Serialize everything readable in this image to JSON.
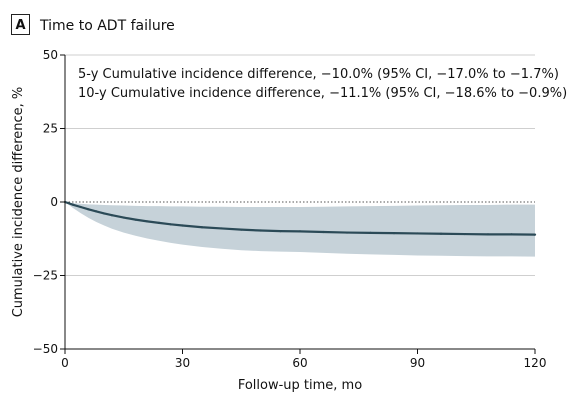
{
  "panel": {
    "letter": "A",
    "title": "Time to ADT failure"
  },
  "annotations": [
    "5-y Cumulative incidence difference, −10.0% (95% CI, −17.0% to −1.7%)",
    "10-y Cumulative incidence difference, −11.1% (95% CI, −18.6% to −0.9%)"
  ],
  "chart_data": {
    "type": "line",
    "title": "Time to ADT failure",
    "xlabel": "Follow-up time, mo",
    "ylabel": "Cumulative incidence difference, %",
    "xlim": [
      0,
      120
    ],
    "ylim": [
      -50,
      50
    ],
    "xticks": [
      0,
      30,
      60,
      90,
      120
    ],
    "yticks": [
      50,
      25,
      0,
      -25,
      -50
    ],
    "xtick_labels": [
      "0",
      "30",
      "60",
      "90",
      "120"
    ],
    "ytick_labels": [
      "50",
      "25",
      "0",
      "−25",
      "−50"
    ],
    "grid": {
      "horizontal": true,
      "vertical": false
    },
    "reference_line_y": 0,
    "colors": {
      "line": "#2b4a57",
      "band": "#c6d2d9"
    },
    "series": [
      {
        "x": [
          0,
          2,
          4,
          6,
          8,
          10,
          12,
          15,
          18,
          21,
          24,
          27,
          30,
          35,
          40,
          45,
          50,
          55,
          60,
          66,
          72,
          78,
          84,
          90,
          96,
          102,
          108,
          114,
          120
        ],
        "y": [
          0,
          -0.9,
          -1.7,
          -2.5,
          -3.2,
          -3.9,
          -4.5,
          -5.3,
          -6.0,
          -6.6,
          -7.1,
          -7.6,
          -8.0,
          -8.6,
          -9.0,
          -9.4,
          -9.7,
          -9.9,
          -10.0,
          -10.2,
          -10.4,
          -10.5,
          -10.6,
          -10.7,
          -10.8,
          -10.9,
          -11.0,
          -11.0,
          -11.1
        ],
        "ci_lower": [
          0,
          -2.0,
          -3.8,
          -5.4,
          -6.8,
          -8.0,
          -9.1,
          -10.4,
          -11.5,
          -12.4,
          -13.2,
          -13.9,
          -14.5,
          -15.3,
          -15.9,
          -16.4,
          -16.7,
          -16.9,
          -17.0,
          -17.3,
          -17.6,
          -17.8,
          -18.0,
          -18.2,
          -18.3,
          -18.4,
          -18.5,
          -18.5,
          -18.6
        ],
        "ci_upper": [
          0,
          -0.4,
          -0.6,
          -0.8,
          -0.9,
          -1.0,
          -1.1,
          -1.2,
          -1.3,
          -1.4,
          -1.4,
          -1.5,
          -1.5,
          -1.6,
          -1.6,
          -1.7,
          -1.7,
          -1.7,
          -1.7,
          -1.6,
          -1.5,
          -1.4,
          -1.3,
          -1.2,
          -1.1,
          -1.0,
          -1.0,
          -0.9,
          -0.9
        ]
      }
    ]
  }
}
